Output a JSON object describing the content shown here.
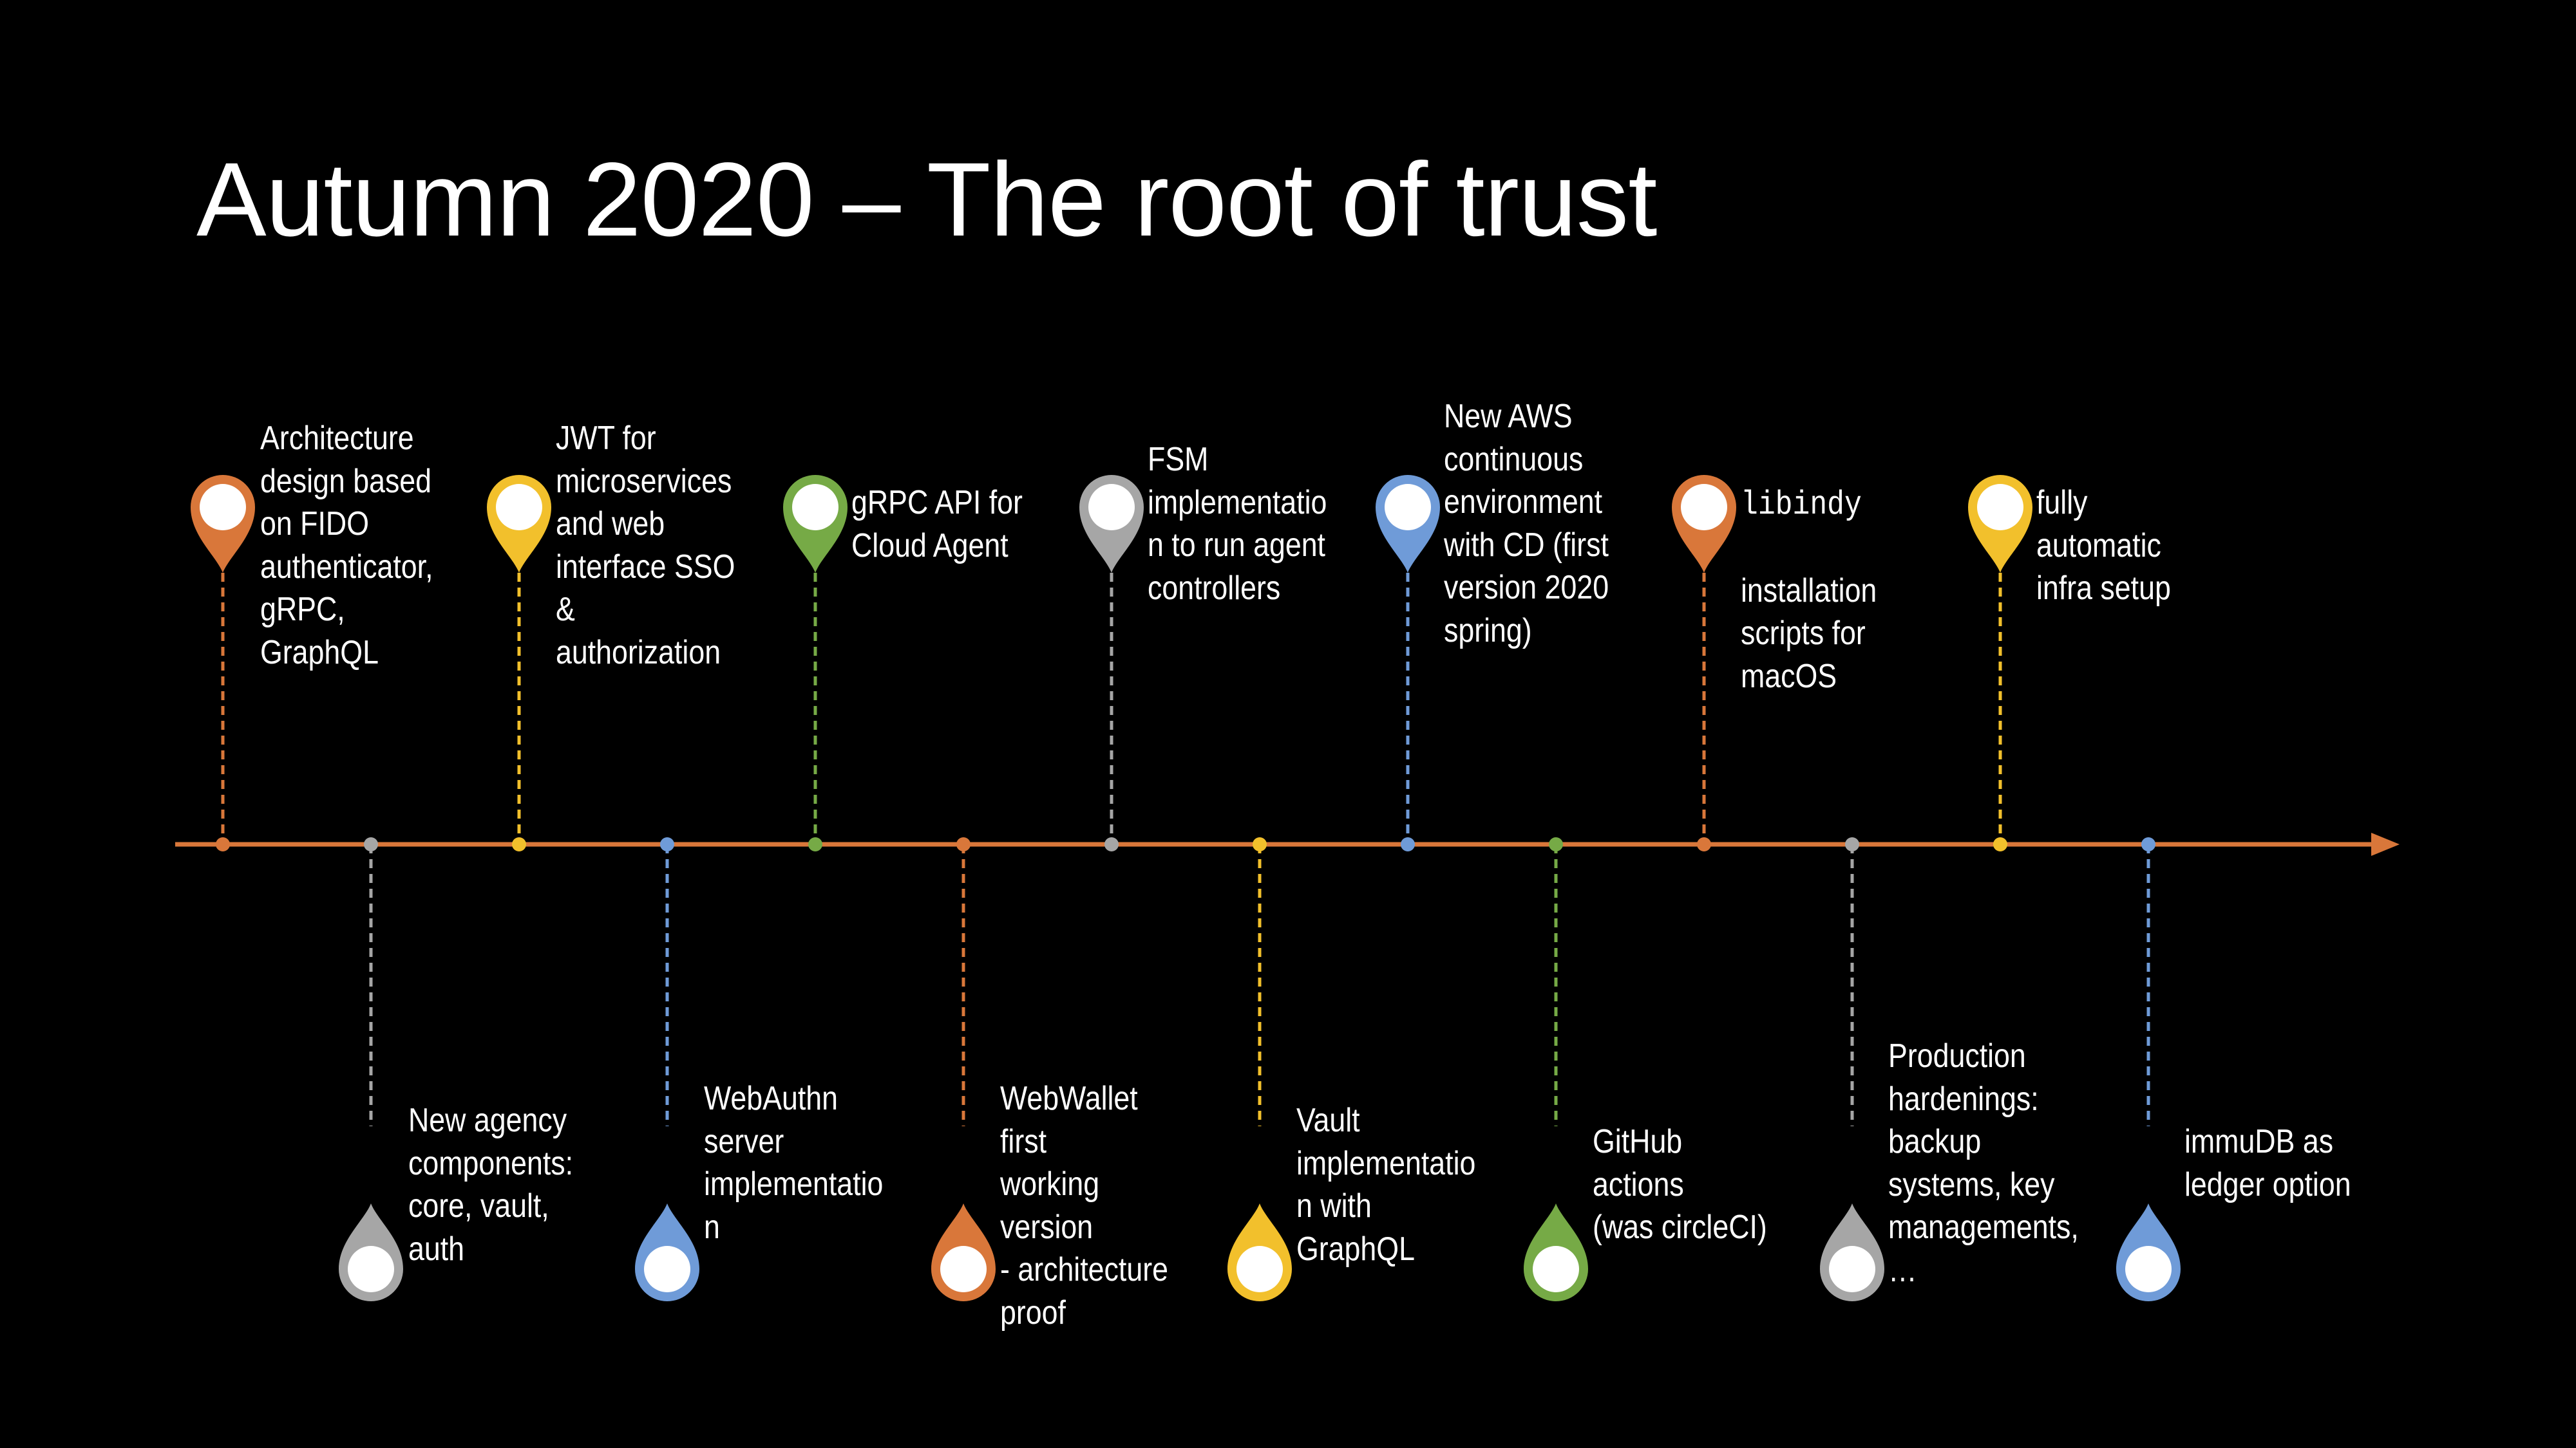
{
  "title": "Autumn 2020 – The root of trust",
  "colors": {
    "background": "#000000",
    "axis": "#D9773A",
    "orange": "#D9773A",
    "gray": "#A6A6A6",
    "blue": "#6F9BD8",
    "green": "#76AA46",
    "yellow": "#F2C02C",
    "pin_fill": "#FFFFFF"
  },
  "milestones": [
    {
      "text": "Architecture design based on FIDO authenticator, gRPC, GraphQL",
      "position": "above",
      "color": "orange"
    },
    {
      "text": "New agency components: core, vault, auth",
      "position": "below",
      "color": "gray"
    },
    {
      "text": "JWT for microservices and web interface SSO & authorization",
      "position": "above",
      "color": "yellow"
    },
    {
      "text": "WebAuthn server implementation",
      "position": "below",
      "color": "blue"
    },
    {
      "text": "gRPC API for Cloud Agent",
      "position": "above",
      "color": "green"
    },
    {
      "text": "WebWallet first working version - architecture proof",
      "position": "below",
      "color": "orange"
    },
    {
      "text": "FSM implementation to run agent controllers",
      "position": "above",
      "color": "gray"
    },
    {
      "text": "Vault implementation with GraphQL",
      "position": "below",
      "color": "yellow"
    },
    {
      "text": "New AWS continuous environment with CD (first version 2020 spring)",
      "position": "above",
      "color": "blue"
    },
    {
      "text": "GitHub actions (was circleCI)",
      "position": "below",
      "color": "green"
    },
    {
      "text": "libindy installation scripts for macOS",
      "position": "above",
      "color": "orange"
    },
    {
      "text": "Production hardenings: backup systems, key managements, ...",
      "position": "below",
      "color": "gray"
    },
    {
      "text": "fully automatic infra setup",
      "position": "above",
      "color": "yellow"
    },
    {
      "text": "immuDB as ledger option",
      "position": "below",
      "color": "blue"
    }
  ],
  "labels": {
    "m0": "Architecture\ndesign based\non FIDO\nauthenticator,\ngRPC, GraphQL",
    "m1": "New agency\ncomponents:\ncore, vault, auth",
    "m2": "JWT for\nmicroservices\nand web\ninterface SSO &\nauthorization",
    "m3": "WebAuthn\nserver\nimplementatio\nn",
    "m4": "gRPC API for\nCloud Agent",
    "m5": "WebWallet first\nworking version\n- architecture\nproof",
    "m6": "FSM\nimplementatio\nn to run agent\ncontrollers",
    "m7": "Vault\nimplementatio\nn with GraphQL",
    "m8": "New AWS\ncontinuous\nenvironment\nwith CD (first\nversion 2020\nspring)",
    "m9": "GitHub actions\n(was circleCI)",
    "m10_code": "libindy",
    "m10": "installation\nscripts for\nmacOS",
    "m11": "Production\nhardenings:\nbackup\nsystems, key\nmanagements,\n…",
    "m12": "fully automatic\ninfra setup",
    "m13": "immuDB as\nledger option"
  }
}
